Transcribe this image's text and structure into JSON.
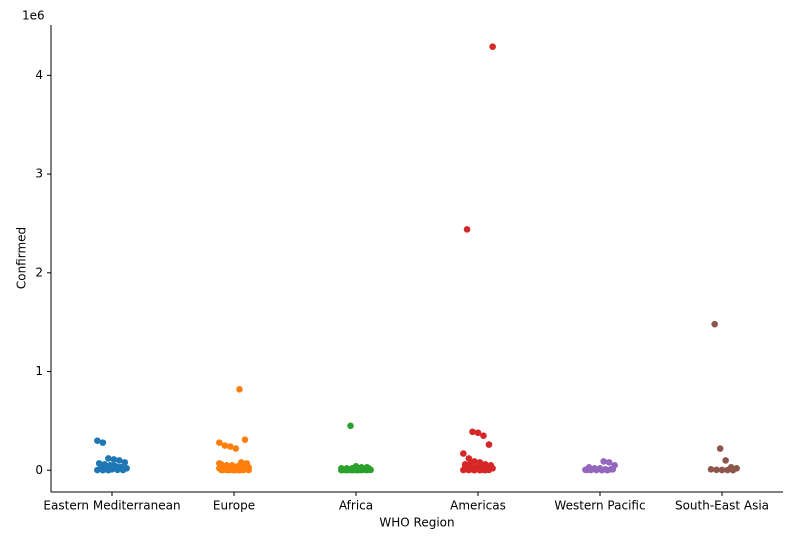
{
  "chart_data": {
    "type": "strip",
    "x_label": "WHO Region",
    "y_label": "Confirmed",
    "y_offset_label": "1e6",
    "categories": [
      "Eastern Mediterranean",
      "Europe",
      "Africa",
      "Americas",
      "Western Pacific",
      "South-East Asia"
    ],
    "colors": [
      "#1f77b4",
      "#ff7f0e",
      "#2ca02c",
      "#d62728",
      "#9467bd",
      "#8c564b"
    ],
    "values": [
      [
        0.3,
        0.28,
        0.12,
        0.11,
        0.1,
        0.08,
        0.07,
        0.06,
        0.05,
        0.04,
        0.03,
        0.02,
        0.02,
        0.01,
        0.01,
        0.005,
        0.003,
        0.002,
        0.001,
        0.001,
        0.05,
        0.03
      ],
      [
        0.82,
        0.31,
        0.28,
        0.25,
        0.24,
        0.22,
        0.08,
        0.07,
        0.06,
        0.05,
        0.05,
        0.04,
        0.04,
        0.03,
        0.03,
        0.03,
        0.02,
        0.02,
        0.02,
        0.02,
        0.01,
        0.01,
        0.01,
        0.01,
        0.01,
        0.005,
        0.005,
        0.004,
        0.003,
        0.003,
        0.002,
        0.002,
        0.001,
        0.001,
        0.001,
        0.06,
        0.07,
        0.04,
        0.02,
        0.01
      ],
      [
        0.45,
        0.04,
        0.03,
        0.03,
        0.02,
        0.02,
        0.02,
        0.01,
        0.01,
        0.01,
        0.01,
        0.008,
        0.006,
        0.005,
        0.004,
        0.004,
        0.003,
        0.003,
        0.002,
        0.002,
        0.002,
        0.001,
        0.001,
        0.001,
        0.001,
        0.01,
        0.02,
        0.005
      ],
      [
        4.29,
        2.44,
        0.39,
        0.38,
        0.35,
        0.26,
        0.17,
        0.12,
        0.09,
        0.08,
        0.06,
        0.05,
        0.05,
        0.04,
        0.03,
        0.03,
        0.02,
        0.02,
        0.01,
        0.01,
        0.01,
        0.005,
        0.004,
        0.003,
        0.002,
        0.001,
        0.001,
        0.001,
        0.02,
        0.06,
        0.07
      ],
      [
        0.09,
        0.08,
        0.05,
        0.03,
        0.02,
        0.02,
        0.01,
        0.01,
        0.005,
        0.003,
        0.002,
        0.001,
        0.001,
        0.01,
        0.004
      ],
      [
        1.48,
        0.22,
        0.1,
        0.03,
        0.02,
        0.01,
        0.005,
        0.003,
        0.002,
        0.001
      ]
    ],
    "ylim": [
      -0.22,
      4.51
    ],
    "yticks": [
      0,
      1,
      2,
      3,
      4
    ]
  }
}
